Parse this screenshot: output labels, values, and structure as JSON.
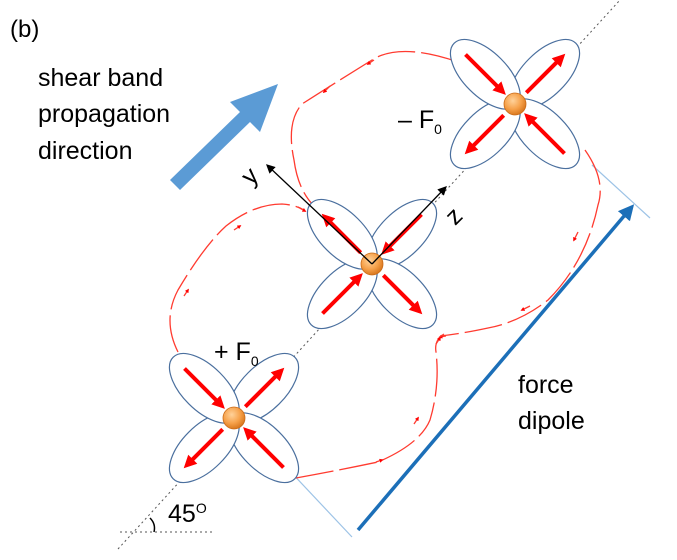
{
  "panel_label": "(b)",
  "labels": {
    "shear_line1": "shear band",
    "shear_line2": "propagation",
    "shear_line3": "direction",
    "neg_force_main": "– F",
    "neg_force_sub": "0",
    "pos_force_main": "+ F",
    "pos_force_sub": "0",
    "force_line1": "force",
    "force_line2": "dipole",
    "angle_num": "45",
    "angle_sup": "O",
    "axis_y": "y",
    "axis_z": "z"
  },
  "colors": {
    "petal_stroke": "#4a6f9e",
    "petal_fill": "#ffffff",
    "force_arrow": "#ff0000",
    "flow_line": "#ff3b30",
    "particle_center": "#f6a14a",
    "particle_edge": "#c96a17",
    "propagation_arrow": "#5b9bd5",
    "dipole_arrow": "#1c6fb8",
    "guide_line": "#9dc3e6"
  }
}
